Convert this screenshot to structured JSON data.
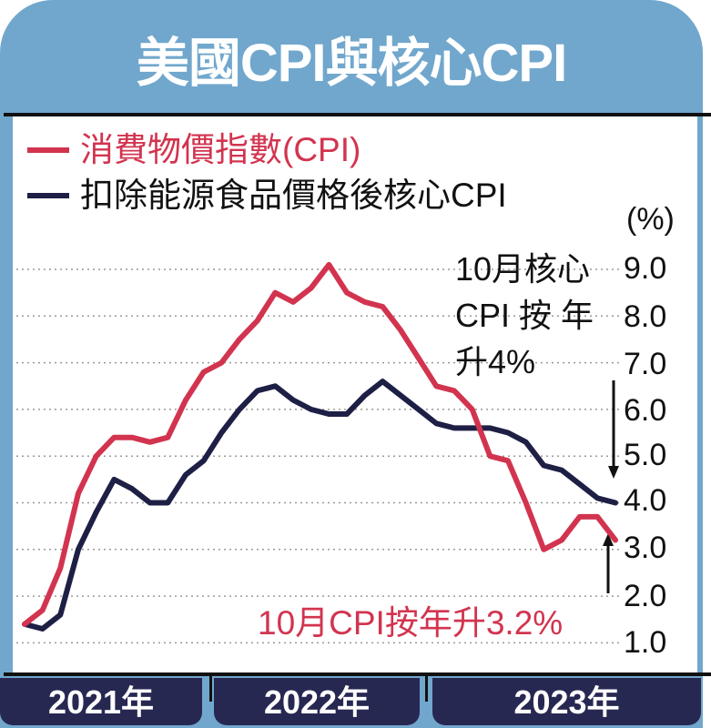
{
  "title": "美國CPI與核心CPI",
  "legend": [
    {
      "label": "消費物價指數(CPI)",
      "color": "#d2344f"
    },
    {
      "label": "扣除能源食品價格後核心CPI",
      "color": "#1e1f45"
    }
  ],
  "unit": "(%)",
  "y_ticks": [
    "9.0",
    "8.0",
    "7.0",
    "6.0",
    "5.0",
    "4.0",
    "3.0",
    "2.0",
    "1.0"
  ],
  "annotations": {
    "core": [
      "10月核心",
      "CPI 按 年",
      "升4%"
    ],
    "cpi": "10月CPI按年升3.2%"
  },
  "years": [
    "2021年",
    "2022年",
    "2023年"
  ],
  "colors": {
    "frame": "#71a7cd",
    "cpi": "#d2344f",
    "core": "#1e1f45",
    "year_tab": "#272852"
  },
  "chart_data": {
    "type": "line",
    "title": "美國CPI與核心CPI",
    "xlabel": "",
    "ylabel": "(%)",
    "ylim": [
      1.0,
      9.0
    ],
    "grid": true,
    "legend_position": "top-left",
    "x": [
      "2021-01",
      "2021-02",
      "2021-03",
      "2021-04",
      "2021-05",
      "2021-06",
      "2021-07",
      "2021-08",
      "2021-09",
      "2021-10",
      "2021-11",
      "2021-12",
      "2022-01",
      "2022-02",
      "2022-03",
      "2022-04",
      "2022-05",
      "2022-06",
      "2022-07",
      "2022-08",
      "2022-09",
      "2022-10",
      "2022-11",
      "2022-12",
      "2023-01",
      "2023-02",
      "2023-03",
      "2023-04",
      "2023-05",
      "2023-06",
      "2023-07",
      "2023-08",
      "2023-09",
      "2023-10"
    ],
    "x_groups": [
      "2021年",
      "2022年",
      "2023年"
    ],
    "series": [
      {
        "name": "消費物價指數(CPI)",
        "color": "#d2344f",
        "values": [
          1.4,
          1.7,
          2.6,
          4.2,
          5.0,
          5.4,
          5.4,
          5.3,
          5.4,
          6.2,
          6.8,
          7.0,
          7.5,
          7.9,
          8.5,
          8.3,
          8.6,
          9.1,
          8.5,
          8.3,
          8.2,
          7.7,
          7.1,
          6.5,
          6.4,
          6.0,
          5.0,
          4.9,
          4.0,
          3.0,
          3.2,
          3.7,
          3.7,
          3.2
        ]
      },
      {
        "name": "扣除能源食品價格後核心CPI",
        "color": "#1e1f45",
        "values": [
          1.4,
          1.3,
          1.6,
          3.0,
          3.8,
          4.5,
          4.3,
          4.0,
          4.0,
          4.6,
          4.9,
          5.5,
          6.0,
          6.4,
          6.5,
          6.2,
          6.0,
          5.9,
          5.9,
          6.3,
          6.6,
          6.3,
          6.0,
          5.7,
          5.6,
          5.6,
          5.6,
          5.5,
          5.3,
          4.8,
          4.7,
          4.4,
          4.1,
          4.0
        ]
      }
    ],
    "annotations": [
      "10月核心CPI按年升4%",
      "10月CPI按年升3.2%"
    ]
  }
}
